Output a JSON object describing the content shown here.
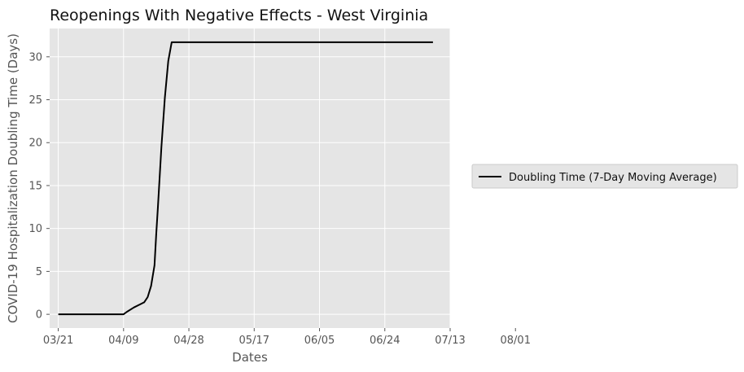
{
  "chart_data": {
    "type": "line",
    "title": "Reopenings With Negative Effects - West Virginia",
    "xlabel": "Dates",
    "ylabel": "COVID-19 Hospitalization Doubling Time (Days)",
    "x_tick_labels": [
      "03/21",
      "04/09",
      "04/28",
      "05/17",
      "06/05",
      "06/24",
      "07/13",
      "08/01"
    ],
    "y_ticks": [
      0,
      5,
      10,
      15,
      20,
      25,
      30
    ],
    "xlim_days": [
      -2.5,
      114
    ],
    "ylim": [
      -1.6,
      33.3
    ],
    "grid": true,
    "legend_position": "right",
    "background": "#e5e5e5",
    "series": [
      {
        "name": "Doubling Time (7-Day Moving Average)",
        "color": "#000000",
        "x_days": [
          0,
          10,
          19,
          20,
          22,
          24,
          25,
          26,
          27,
          28,
          28.5,
          29,
          30,
          31,
          32,
          33,
          34,
          35,
          36,
          109
        ],
        "y": [
          0,
          0,
          0,
          0.3,
          0.8,
          1.2,
          1.4,
          2.0,
          3.3,
          5.7,
          9.3,
          12.5,
          19.5,
          25.2,
          29.5,
          31.7,
          31.7,
          31.7,
          31.7,
          31.7
        ]
      }
    ]
  }
}
